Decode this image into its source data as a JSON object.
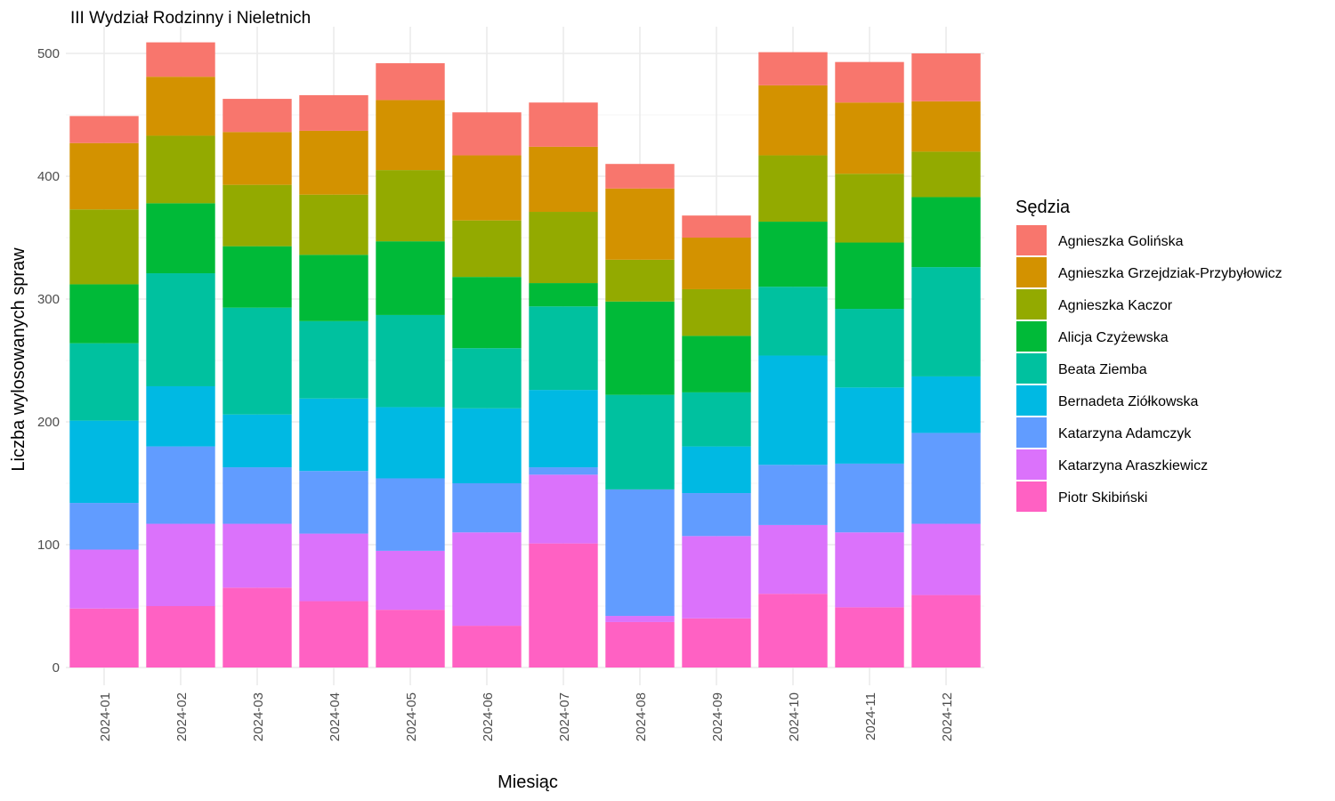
{
  "chart_data": {
    "type": "bar",
    "stacked": true,
    "title": "III Wydział Rodzinny i Nieletnich",
    "xlabel": "Miesiąc",
    "ylabel": "Liczba wylosowanych spraw",
    "ylim": [
      0,
      510
    ],
    "yticks": [
      0,
      100,
      200,
      300,
      400,
      500
    ],
    "grid": true,
    "legend_position": "right",
    "legend_title": "Sędzia",
    "categories": [
      "2024-01",
      "2024-02",
      "2024-03",
      "2024-04",
      "2024-05",
      "2024-06",
      "2024-07",
      "2024-08",
      "2024-09",
      "2024-10",
      "2024-11",
      "2024-12"
    ],
    "series": [
      {
        "name": "Piotr Skibiński",
        "color": "#FF61C3",
        "values": [
          48,
          50,
          65,
          54,
          47,
          34,
          101,
          37,
          40,
          60,
          49,
          59
        ]
      },
      {
        "name": "Katarzyna Araszkiewicz",
        "color": "#DB72FB",
        "values": [
          48,
          67,
          52,
          55,
          48,
          76,
          56,
          5,
          67,
          56,
          61,
          58
        ]
      },
      {
        "name": "Katarzyna Adamczyk",
        "color": "#619CFF",
        "values": [
          38,
          63,
          46,
          51,
          59,
          40,
          6,
          103,
          35,
          49,
          56,
          74
        ]
      },
      {
        "name": "Bernadeta Ziółkowska",
        "color": "#00B9E3",
        "values": [
          67,
          49,
          43,
          59,
          58,
          61,
          63,
          0,
          38,
          89,
          62,
          46
        ]
      },
      {
        "name": "Beata Ziemba",
        "color": "#00C19F",
        "values": [
          63,
          92,
          87,
          63,
          75,
          49,
          68,
          77,
          44,
          56,
          64,
          89
        ]
      },
      {
        "name": "Alicja Czyżewska",
        "color": "#00BA38",
        "values": [
          48,
          57,
          50,
          54,
          60,
          58,
          19,
          76,
          46,
          53,
          54,
          57
        ]
      },
      {
        "name": "Agnieszka Kaczor",
        "color": "#93AA00",
        "values": [
          61,
          55,
          50,
          49,
          58,
          46,
          58,
          34,
          38,
          54,
          56,
          37
        ]
      },
      {
        "name": "Agnieszka Grzejdziak-Przybyłowicz",
        "color": "#D39200",
        "values": [
          54,
          48,
          43,
          52,
          57,
          53,
          53,
          58,
          42,
          57,
          58,
          41
        ]
      },
      {
        "name": "Agnieszka Golińska",
        "color": "#F8766D",
        "values": [
          22,
          28,
          27,
          29,
          30,
          35,
          36,
          20,
          18,
          27,
          33,
          39
        ]
      }
    ],
    "legend_order": [
      "Agnieszka Golińska",
      "Agnieszka Grzejdziak-Przybyłowicz",
      "Agnieszka Kaczor",
      "Alicja Czyżewska",
      "Beata Ziemba",
      "Bernadeta Ziółkowska",
      "Katarzyna Adamczyk",
      "Katarzyna Araszkiewicz",
      "Piotr Skibiński"
    ]
  }
}
